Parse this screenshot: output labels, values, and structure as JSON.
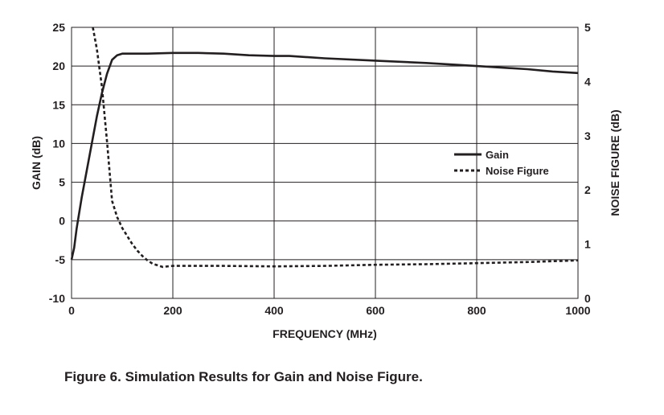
{
  "chart_data": {
    "type": "line",
    "caption": "Figure 6.  Simulation Results for Gain and Noise Figure.",
    "xlabel": "FREQUENCY (MHz)",
    "ylabel": "GAIN (dB)",
    "y2label": "NOISE FIGURE (dB)",
    "xlim": [
      0,
      1000
    ],
    "ylim": [
      -10,
      25
    ],
    "y2lim": [
      0,
      5
    ],
    "x_ticks": [
      "0",
      "200",
      "400",
      "600",
      "800",
      "1000"
    ],
    "y_ticks": [
      "-10",
      "-5",
      "0",
      "5",
      "10",
      "15",
      "20",
      "25"
    ],
    "y2_ticks": [
      "0",
      "1",
      "2",
      "3",
      "4",
      "5"
    ],
    "grid": true,
    "legend_position": "center-right",
    "series": [
      {
        "name": "Gain",
        "axis": "left",
        "style": "solid",
        "x": [
          0,
          5,
          10,
          20,
          30,
          40,
          50,
          60,
          70,
          80,
          90,
          100,
          120,
          150,
          200,
          250,
          300,
          350,
          400,
          430,
          500,
          600,
          700,
          800,
          900,
          950,
          1000
        ],
        "y": [
          -5,
          -3.5,
          -1,
          3,
          6.5,
          10,
          13.5,
          16.5,
          19,
          20.8,
          21.4,
          21.6,
          21.6,
          21.6,
          21.7,
          21.7,
          21.6,
          21.4,
          21.3,
          21.3,
          21.0,
          20.7,
          20.4,
          20.0,
          19.6,
          19.3,
          19.1
        ]
      },
      {
        "name": "Noise Figure",
        "axis": "right",
        "style": "dashed",
        "x": [
          42,
          50,
          60,
          70,
          80,
          90,
          100,
          110,
          120,
          130,
          140,
          150,
          160,
          170,
          180,
          190,
          200,
          250,
          300,
          400,
          500,
          600,
          700,
          800,
          900,
          1000
        ],
        "y": [
          5.0,
          4.6,
          3.9,
          2.9,
          1.8,
          1.5,
          1.3,
          1.15,
          1.0,
          0.88,
          0.78,
          0.7,
          0.64,
          0.61,
          0.58,
          0.59,
          0.6,
          0.6,
          0.6,
          0.59,
          0.6,
          0.62,
          0.63,
          0.65,
          0.67,
          0.7
        ]
      }
    ]
  },
  "colors": {
    "line": "#231f20",
    "grid": "#231f20",
    "background": "#ffffff"
  }
}
